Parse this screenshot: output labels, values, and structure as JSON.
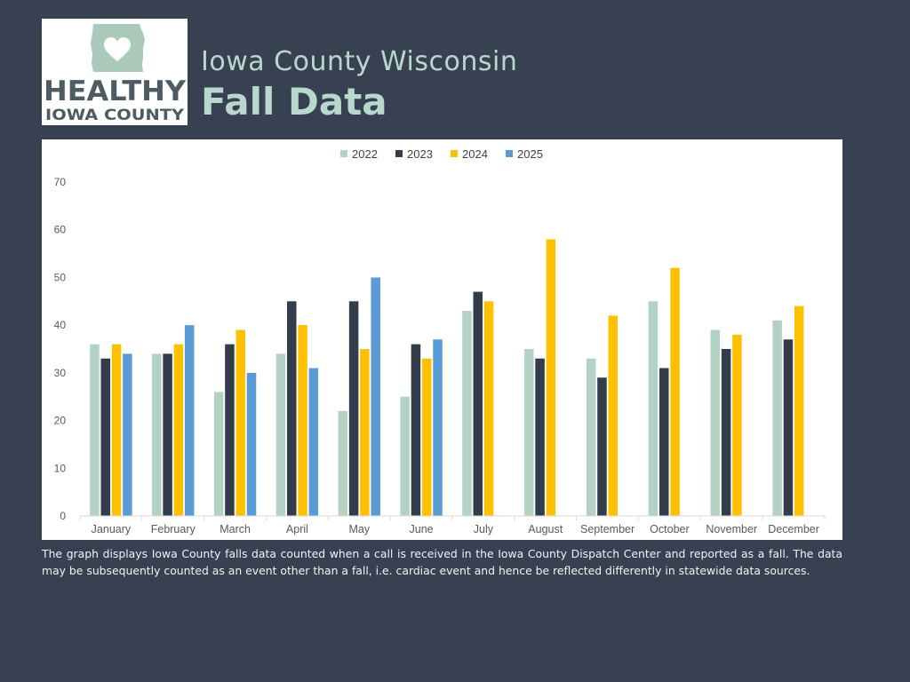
{
  "header": {
    "logo_text_line1": "HEALTHY",
    "logo_text_line2": "IOWA COUNTY",
    "subtitle": "Iowa County Wisconsin",
    "title": "Fall Data"
  },
  "caption": "The graph displays Iowa County falls data counted when a call is received in the Iowa County Dispatch Center and reported as a fall. The data may be subsequently counted as an event other than a fall, i.e. cardiac event and hence be reflected differently in statewide data sources.",
  "colors": {
    "background": "#374151",
    "accent": "#b9d8cb",
    "logo_text": "#4d5b63"
  },
  "chart_data": {
    "type": "bar",
    "title": "",
    "xlabel": "",
    "ylabel": "",
    "ylim": [
      0,
      70
    ],
    "yticks": [
      0,
      10,
      20,
      30,
      40,
      50,
      60,
      70
    ],
    "grid": false,
    "legend_position": "top-center",
    "categories": [
      "January",
      "February",
      "March",
      "April",
      "May",
      "June",
      "July",
      "August",
      "September",
      "October",
      "November",
      "December"
    ],
    "series": [
      {
        "name": "2022",
        "color": "#b4d2c4",
        "values": [
          36,
          34,
          26,
          34,
          22,
          25,
          43,
          35,
          33,
          45,
          39,
          41
        ]
      },
      {
        "name": "2023",
        "color": "#323c4b",
        "values": [
          33,
          34,
          36,
          45,
          45,
          36,
          47,
          33,
          29,
          31,
          35,
          37
        ]
      },
      {
        "name": "2024",
        "color": "#ffc000",
        "values": [
          36,
          36,
          39,
          40,
          35,
          33,
          45,
          58,
          42,
          52,
          38,
          44
        ]
      },
      {
        "name": "2025",
        "color": "#5b9bd5",
        "values": [
          34,
          40,
          30,
          31,
          50,
          37,
          null,
          null,
          null,
          null,
          null,
          null
        ]
      }
    ]
  }
}
